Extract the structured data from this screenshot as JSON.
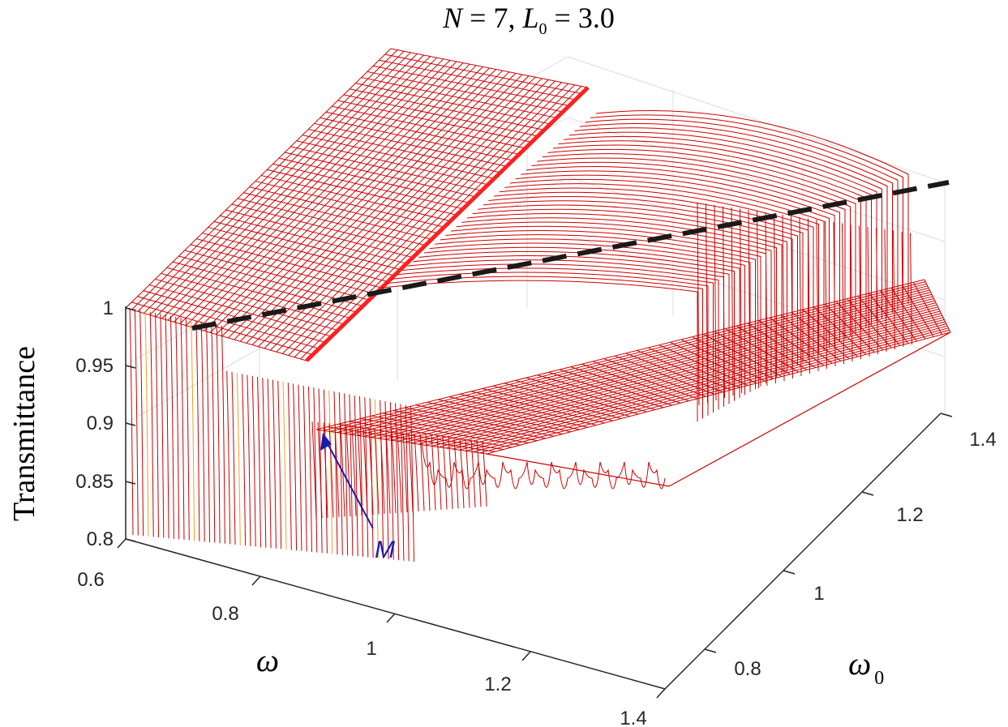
{
  "chart_data": {
    "type": "surface",
    "title": {
      "main_lhs": "N",
      "eq1": " = 7, ",
      "l_sym": "L",
      "l_sub": "0",
      "eq2": " = 3.0"
    },
    "xlabel": "ω",
    "ylabel": {
      "sym": "ω",
      "sub": "0"
    },
    "zlabel": "Transmittance",
    "xlim": [
      0.6,
      1.4
    ],
    "ylim": [
      0.7,
      1.4
    ],
    "zlim": [
      0.8,
      1.0
    ],
    "x_ticks": [
      "0.6",
      "0.8",
      "1",
      "1.2",
      "1.4"
    ],
    "y_ticks": [
      "0.8",
      "1",
      "1.2",
      "1.4"
    ],
    "z_ticks": [
      "0.8",
      "0.85",
      "0.9",
      "0.95",
      "1"
    ],
    "grid": true,
    "mesh_color": "#cc0000",
    "highlight_color": "#ff2020",
    "annotation": {
      "text": "M",
      "color": "#1a1ab0"
    },
    "dashed_line_color": "#1a1a1a"
  }
}
